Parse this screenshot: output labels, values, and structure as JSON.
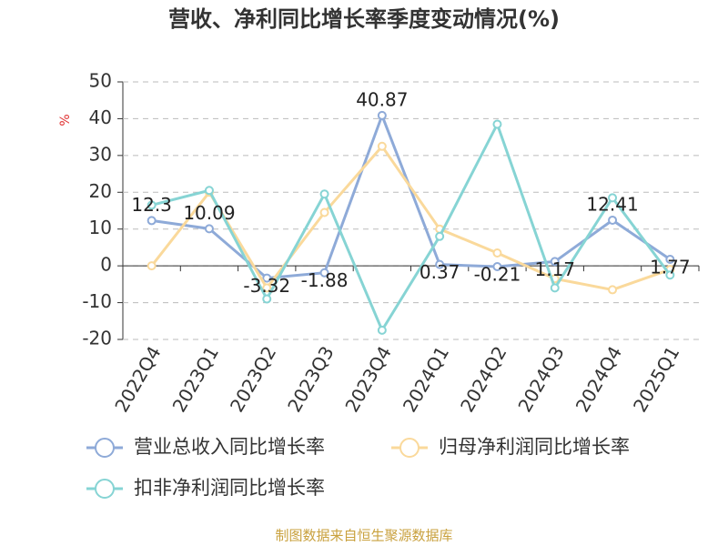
{
  "chart_data": {
    "type": "line",
    "title": "营收、净利同比增长率季度变动情况(%)",
    "y_label": "%",
    "source": "制图数据来自恒生聚源数据库",
    "categories": [
      "2022Q4",
      "2023Q1",
      "2023Q2",
      "2023Q3",
      "2023Q4",
      "2024Q1",
      "2024Q2",
      "2024Q3",
      "2024Q4",
      "2025Q1"
    ],
    "series": [
      {
        "name": "营业总收入同比增长率",
        "color": "#8eaad8",
        "values": [
          12.3,
          10.09,
          -3.32,
          -1.88,
          40.87,
          0.37,
          -0.21,
          1.17,
          12.41,
          1.77
        ],
        "show_labels": true
      },
      {
        "name": "归母净利润同比增长率",
        "color": "#fad99b",
        "values": [
          0,
          20,
          -6,
          14.5,
          32.5,
          10,
          3.5,
          -3.5,
          -6.5,
          -1
        ]
      },
      {
        "name": "扣非净利润同比增长率",
        "color": "#86d4d4",
        "values": [
          16.5,
          20.5,
          -9,
          19.5,
          -17.5,
          8,
          38.5,
          -6,
          18.5,
          -2.5
        ]
      }
    ],
    "ylim": [
      -20,
      50
    ],
    "yticks": [
      -20,
      -10,
      0,
      10,
      20,
      30,
      40,
      50
    ],
    "grid": true
  }
}
